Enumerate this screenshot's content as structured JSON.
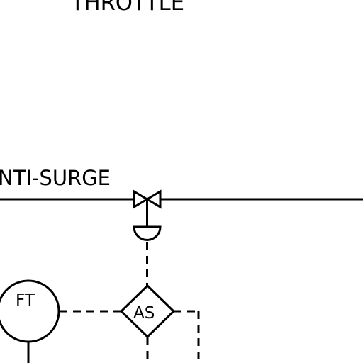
{
  "labels": {
    "throttle": "THROTTLE",
    "anti_surge": "NTI-SURGE",
    "flow_transmitter": "FT",
    "anti_surge_controller": "AS"
  }
}
